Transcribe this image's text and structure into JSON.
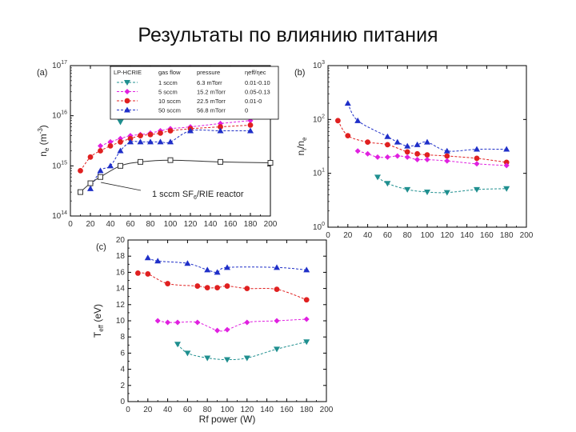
{
  "slide_title": "Результаты по влиянию питания",
  "series_colors": {
    "s1": "#1f8f8f",
    "s5": "#e020e0",
    "s10": "#e02020",
    "s50": "#1f2fc8",
    "ref": "#333333"
  },
  "chart_data": [
    {
      "type": "scatter",
      "panel_label": "(a)",
      "xlabel": "",
      "ylabel": "n_e (m^-3)",
      "ylabel_main": "n",
      "ylabel_sub": "e",
      "ylabel_unit": "(m",
      "ylabel_sup": "-3",
      "ylabel_close": ")",
      "log_y": true,
      "xlim": [
        0,
        200
      ],
      "ylim": [
        100000000000000.0,
        1e+17
      ],
      "x_ticks": [
        "0",
        "20",
        "40",
        "60",
        "80",
        "100",
        "120",
        "140",
        "160",
        "180",
        "200"
      ],
      "y_ticks": [
        {
          "value": 100000000000000.0,
          "base": "10",
          "exp": "14"
        },
        {
          "value": 1000000000000000.0,
          "base": "10",
          "exp": "15"
        },
        {
          "value": 1e+16,
          "base": "10",
          "exp": "16"
        },
        {
          "value": 1e+17,
          "base": "10",
          "exp": "17"
        }
      ],
      "legend": {
        "header": [
          "LP-HCRIE",
          "gas flow",
          "pressure",
          "ηeff/ηec"
        ],
        "rows": [
          {
            "key": "s1",
            "flow": "1 sccm",
            "pressure": "6.3 mTorr",
            "ratio": "0.01-0.10"
          },
          {
            "key": "s5",
            "flow": "5 sccm",
            "pressure": "15.2 mTorr",
            "ratio": "0.05-0.13"
          },
          {
            "key": "s10",
            "flow": "10 sccm",
            "pressure": "22.5 mTorr",
            "ratio": "0.01-0"
          },
          {
            "key": "s50",
            "flow": "50 sccm",
            "pressure": "56.8 mTorr",
            "ratio": "0"
          }
        ]
      },
      "annotation": "1 sccm SF6/RIE reactor",
      "annotation_main": "1 sccm SF",
      "annotation_sub": "6",
      "annotation_rest": "/RIE reactor",
      "series": [
        {
          "key": "s1",
          "marker": "tri-down",
          "x": [
            50,
            60,
            70,
            80,
            90,
            100,
            120,
            150,
            180
          ],
          "y": [
            7500000000000000.0,
            1.1e+16,
            1.3e+16,
            1.5e+16,
            1.6e+16,
            1.7e+16,
            1.9e+16,
            2e+16,
            2.2e+16
          ]
        },
        {
          "key": "s5",
          "marker": "diamond",
          "x": [
            30,
            40,
            50,
            60,
            70,
            80,
            90,
            100,
            120,
            150,
            180
          ],
          "y": [
            2500000000000000.0,
            3000000000000000.0,
            3500000000000000.0,
            4000000000000000.0,
            4200000000000000.0,
            4500000000000000.0,
            5000000000000000.0,
            5500000000000000.0,
            6000000000000000.0,
            7000000000000000.0,
            8000000000000000.0
          ]
        },
        {
          "key": "s10",
          "marker": "circle",
          "x": [
            10,
            20,
            30,
            40,
            50,
            60,
            70,
            80,
            90,
            100,
            120,
            150,
            180
          ],
          "y": [
            800000000000000.0,
            1500000000000000.0,
            2000000000000000.0,
            2500000000000000.0,
            3000000000000000.0,
            3500000000000000.0,
            4000000000000000.0,
            4200000000000000.0,
            4500000000000000.0,
            5000000000000000.0,
            5500000000000000.0,
            6000000000000000.0,
            6500000000000000.0
          ]
        },
        {
          "key": "s50",
          "marker": "tri-up",
          "x": [
            20,
            30,
            40,
            50,
            60,
            70,
            80,
            90,
            100,
            120,
            150,
            180
          ],
          "y": [
            350000000000000.0,
            800000000000000.0,
            1000000000000000.0,
            2000000000000000.0,
            3000000000000000.0,
            3000000000000000.0,
            3000000000000000.0,
            3000000000000000.0,
            3000000000000000.0,
            5000000000000000.0,
            5000000000000000.0,
            5000000000000000.0
          ]
        },
        {
          "key": "ref",
          "marker": "square-open",
          "x": [
            10,
            20,
            30,
            50,
            70,
            100,
            150,
            200
          ],
          "y": [
            300000000000000.0,
            450000000000000.0,
            600000000000000.0,
            1000000000000000.0,
            1200000000000000.0,
            1300000000000000.0,
            1200000000000000.0,
            1150000000000000.0
          ]
        }
      ]
    },
    {
      "type": "scatter",
      "panel_label": "(b)",
      "xlabel": "",
      "ylabel": "n_i/n_e",
      "ylabel_main": "n",
      "ylabel_sub_i": "i",
      "ylabel_slash": "/n",
      "ylabel_sub_e": "e",
      "log_y": true,
      "xlim": [
        0,
        200
      ],
      "ylim": [
        1,
        1000
      ],
      "x_ticks": [
        "0",
        "20",
        "40",
        "60",
        "80",
        "100",
        "120",
        "140",
        "160",
        "180",
        "200"
      ],
      "y_ticks": [
        {
          "value": 1,
          "base": "10",
          "exp": "0"
        },
        {
          "value": 10,
          "base": "10",
          "exp": "1"
        },
        {
          "value": 100,
          "base": "10",
          "exp": "2"
        },
        {
          "value": 1000,
          "base": "10",
          "exp": "3"
        }
      ],
      "series": [
        {
          "key": "s50",
          "marker": "tri-up",
          "x": [
            20,
            30,
            60,
            70,
            80,
            90,
            100,
            120,
            150,
            180
          ],
          "y": [
            200,
            95,
            48,
            38,
            32,
            34,
            38,
            26,
            28,
            28
          ]
        },
        {
          "key": "s10",
          "marker": "circle",
          "x": [
            10,
            20,
            40,
            60,
            80,
            90,
            100,
            120,
            150,
            180
          ],
          "y": [
            95,
            50,
            38,
            34,
            25,
            23,
            22,
            21,
            19,
            16
          ]
        },
        {
          "key": "s5",
          "marker": "diamond",
          "x": [
            30,
            40,
            50,
            60,
            70,
            80,
            90,
            100,
            120,
            150,
            180
          ],
          "y": [
            26,
            23,
            20,
            20,
            21,
            20,
            18,
            18,
            17,
            15,
            14
          ]
        },
        {
          "key": "s1",
          "marker": "tri-down",
          "x": [
            50,
            60,
            80,
            100,
            120,
            150,
            180
          ],
          "y": [
            8.5,
            6.5,
            5.0,
            4.5,
            4.4,
            5.0,
            5.2
          ]
        }
      ]
    },
    {
      "type": "scatter",
      "panel_label": "(c)",
      "xlabel": "Rf power (W)",
      "ylabel": "T_eff (eV)",
      "ylabel_main": "T",
      "ylabel_sub": "eff",
      "ylabel_unit": "(eV)",
      "log_y": false,
      "xlim": [
        0,
        200
      ],
      "ylim": [
        0,
        20
      ],
      "x_ticks": [
        "0",
        "20",
        "40",
        "60",
        "80",
        "100",
        "120",
        "140",
        "160",
        "180",
        "200"
      ],
      "y_ticks": [
        {
          "value": 0,
          "label": "0"
        },
        {
          "value": 2,
          "label": "2"
        },
        {
          "value": 4,
          "label": "4"
        },
        {
          "value": 6,
          "label": "6"
        },
        {
          "value": 8,
          "label": "8"
        },
        {
          "value": 10,
          "label": "10"
        },
        {
          "value": 12,
          "label": "12"
        },
        {
          "value": 14,
          "label": "14"
        },
        {
          "value": 16,
          "label": "16"
        },
        {
          "value": 18,
          "label": "18"
        },
        {
          "value": 20,
          "label": "20"
        }
      ],
      "series": [
        {
          "key": "s50",
          "marker": "tri-up",
          "x": [
            20,
            30,
            60,
            80,
            90,
            100,
            150,
            180
          ],
          "y": [
            17.8,
            17.4,
            17.1,
            16.3,
            16.0,
            16.6,
            16.6,
            16.3
          ]
        },
        {
          "key": "s10",
          "marker": "circle",
          "x": [
            10,
            20,
            40,
            70,
            80,
            90,
            100,
            120,
            150,
            180
          ],
          "y": [
            15.9,
            15.8,
            14.6,
            14.3,
            14.1,
            14.1,
            14.3,
            14.0,
            13.9,
            12.6
          ]
        },
        {
          "key": "s5",
          "marker": "diamond",
          "x": [
            30,
            40,
            50,
            70,
            90,
            100,
            120,
            150,
            180
          ],
          "y": [
            10.0,
            9.8,
            9.8,
            9.8,
            8.8,
            8.9,
            9.8,
            10.0,
            10.2
          ]
        },
        {
          "key": "s1",
          "marker": "tri-down",
          "x": [
            50,
            60,
            80,
            100,
            120,
            150,
            180
          ],
          "y": [
            7.1,
            6.0,
            5.4,
            5.2,
            5.4,
            6.5,
            7.4
          ]
        }
      ]
    }
  ]
}
